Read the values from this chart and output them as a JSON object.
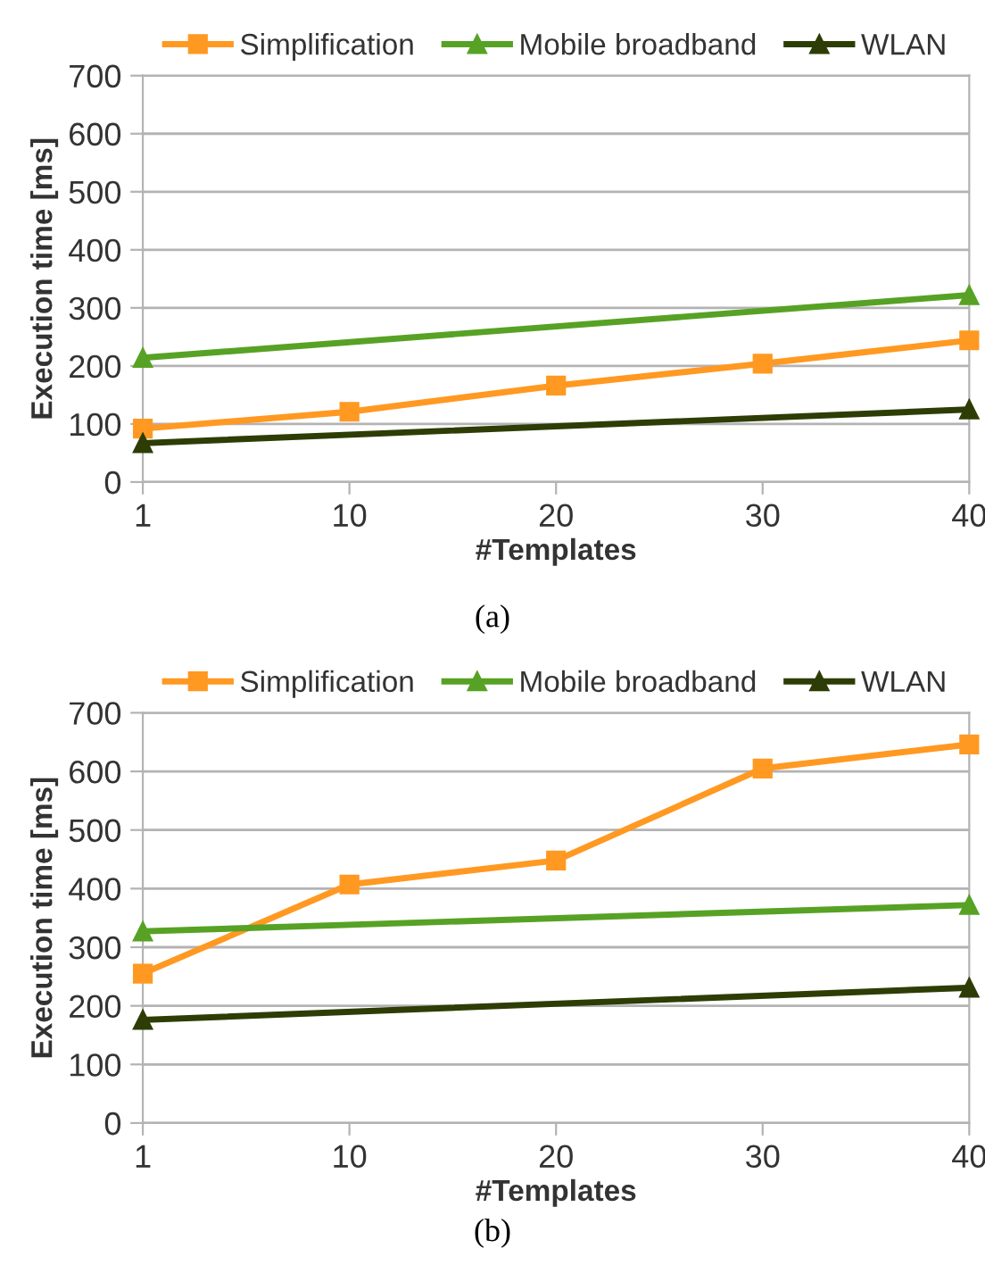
{
  "chart_data": [
    {
      "type": "line",
      "categories": [
        "1",
        "10",
        "20",
        "30",
        "40"
      ],
      "xlabel": "#Templates",
      "ylabel": "Execution time [ms]",
      "ylim": [
        0,
        700
      ],
      "yticks": [
        0,
        100,
        200,
        300,
        400,
        500,
        600,
        700
      ],
      "grid": "y",
      "legend": "top",
      "annotations": [
        "(a)"
      ],
      "series": [
        {
          "name": "Simplification",
          "color": "#ff9922",
          "marker": "square",
          "values": [
            92,
            121,
            166,
            204,
            244
          ]
        },
        {
          "name": "Mobile broadband",
          "color": "#57a225",
          "marker": "triangle",
          "x": [
            "1",
            "40"
          ],
          "values": [
            214,
            322
          ]
        },
        {
          "name": "WLAN",
          "color": "#2d3d05",
          "marker": "triangle",
          "x": [
            "1",
            "40"
          ],
          "values": [
            67,
            125
          ]
        }
      ]
    },
    {
      "type": "line",
      "categories": [
        "1",
        "10",
        "20",
        "30",
        "40"
      ],
      "xlabel": "#Templates",
      "ylabel": "Execution time [ms]",
      "ylim": [
        0,
        700
      ],
      "yticks": [
        0,
        100,
        200,
        300,
        400,
        500,
        600,
        700
      ],
      "grid": "y",
      "legend": "top",
      "annotations": [
        "(b)"
      ],
      "series": [
        {
          "name": "Simplification",
          "color": "#ff9922",
          "marker": "square",
          "values": [
            255,
            407,
            448,
            605,
            646
          ]
        },
        {
          "name": "Mobile broadband",
          "color": "#57a225",
          "marker": "triangle",
          "x": [
            "1",
            "40"
          ],
          "values": [
            327,
            372
          ]
        },
        {
          "name": "WLAN",
          "color": "#2d3d05",
          "marker": "triangle",
          "x": [
            "1",
            "40"
          ],
          "values": [
            176,
            231
          ]
        }
      ]
    }
  ]
}
